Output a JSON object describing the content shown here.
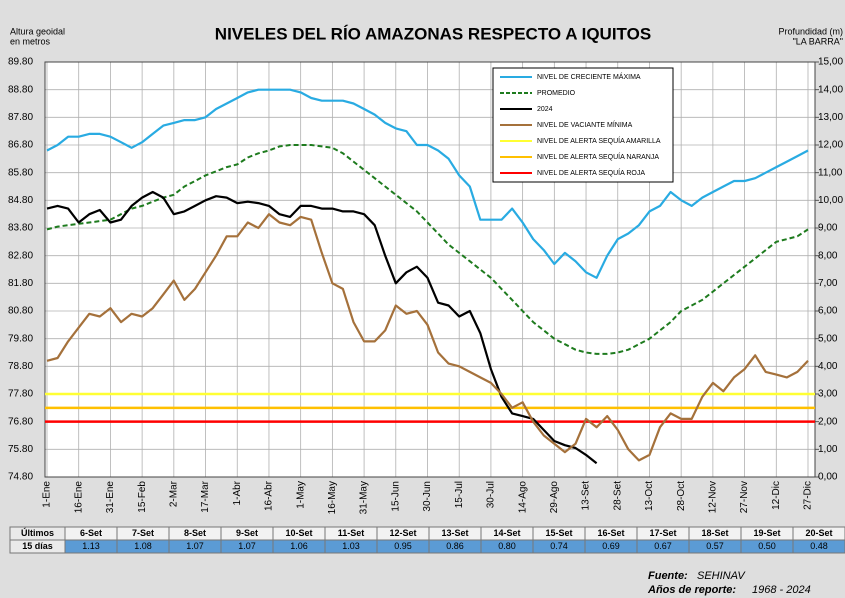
{
  "chart_data": {
    "type": "line",
    "title": "NIVELES DEL RÍO AMAZONAS RESPECTO A IQUITOS",
    "ylabel": [
      "Altura geoidal",
      "en metros"
    ],
    "y2label": [
      "Profundidad (m)",
      "\"LA BARRA\""
    ],
    "categories": [
      "1-Ene",
      null,
      null,
      "16-Ene",
      null,
      null,
      "31-Ene",
      null,
      null,
      "15-Feb",
      null,
      null,
      "2-Mar",
      null,
      null,
      "17-Mar",
      null,
      null,
      "1-Abr",
      null,
      null,
      "16-Abr",
      null,
      null,
      "1-May",
      null,
      null,
      "16-May",
      null,
      null,
      "31-May",
      null,
      null,
      "15-Jun",
      null,
      null,
      "30-Jun",
      null,
      null,
      "15-Jul",
      null,
      null,
      "30-Jul",
      null,
      null,
      "14-Ago",
      null,
      null,
      "29-Ago",
      null,
      null,
      "13-Set",
      null,
      null,
      "28-Set",
      null,
      null,
      "13-Oct",
      null,
      null,
      "28-Oct",
      null,
      null,
      "12-Nov",
      null,
      null,
      "27-Nov",
      null,
      null,
      "12-Dic",
      null,
      null,
      "27-Dic"
    ],
    "series": [
      {
        "name": "NIVEL DE CRECIENTE MÁXIMA",
        "color": "#29abe2",
        "dash": false,
        "values": [
          86.6,
          86.8,
          87.1,
          87.1,
          87.2,
          87.2,
          87.1,
          86.9,
          86.7,
          86.9,
          87.2,
          87.5,
          87.6,
          87.7,
          87.7,
          87.8,
          88.1,
          88.3,
          88.5,
          88.7,
          88.8,
          88.8,
          88.8,
          88.8,
          88.7,
          88.5,
          88.4,
          88.4,
          88.4,
          88.3,
          88.1,
          87.9,
          87.6,
          87.4,
          87.3,
          86.8,
          86.8,
          86.6,
          86.3,
          85.7,
          85.3,
          84.1,
          84.1,
          84.1,
          84.5,
          84.0,
          83.4,
          83.0,
          82.5,
          82.9,
          82.6,
          82.2,
          82.0,
          82.8,
          83.4,
          83.6,
          83.9,
          84.4,
          84.6,
          85.1,
          84.8,
          84.6,
          84.9,
          85.1,
          85.3,
          85.5,
          85.5,
          85.6,
          85.8,
          86.0,
          86.2,
          86.4,
          86.6
        ]
      },
      {
        "name": "PROMEDIO",
        "color": "#1e7b1e",
        "dash": true,
        "values": [
          83.75,
          83.85,
          83.9,
          83.95,
          84.0,
          84.05,
          84.1,
          84.3,
          84.5,
          84.6,
          84.75,
          84.9,
          85.0,
          85.3,
          85.5,
          85.7,
          85.85,
          86.0,
          86.1,
          86.35,
          86.5,
          86.6,
          86.75,
          86.8,
          86.8,
          86.8,
          86.75,
          86.7,
          86.5,
          86.2,
          85.9,
          85.6,
          85.3,
          85.0,
          84.7,
          84.4,
          84.0,
          83.6,
          83.2,
          82.9,
          82.6,
          82.3,
          82.0,
          81.6,
          81.2,
          80.8,
          80.4,
          80.1,
          79.8,
          79.6,
          79.4,
          79.3,
          79.25,
          79.25,
          79.3,
          79.4,
          79.6,
          79.8,
          80.1,
          80.4,
          80.8,
          81.0,
          81.2,
          81.5,
          81.8,
          82.1,
          82.4,
          82.7,
          83.0,
          83.3,
          83.4,
          83.5,
          83.75
        ]
      },
      {
        "name": "2024",
        "color": "#000000",
        "dash": false,
        "values": [
          84.5,
          84.6,
          84.5,
          84.0,
          84.3,
          84.45,
          84.0,
          84.1,
          84.6,
          84.9,
          85.1,
          84.9,
          84.3,
          84.4,
          84.6,
          84.8,
          84.95,
          84.9,
          84.7,
          84.75,
          84.7,
          84.6,
          84.3,
          84.2,
          84.6,
          84.6,
          84.5,
          84.5,
          84.4,
          84.4,
          84.3,
          83.9,
          82.8,
          81.8,
          82.2,
          82.4,
          82.0,
          81.1,
          81.0,
          80.6,
          80.8,
          80.0,
          78.7,
          77.7,
          77.1,
          77.0,
          76.9,
          76.5,
          76.1,
          75.95,
          75.85,
          75.6,
          75.3,
          null,
          null,
          null,
          null,
          null,
          null,
          null,
          null,
          null,
          null,
          null,
          null,
          null,
          null,
          null,
          null,
          null,
          null,
          null,
          null
        ]
      },
      {
        "name": "NIVEL DE VACIANTE MÍNIMA",
        "color": "#a5713b",
        "dash": false,
        "values": [
          79.0,
          79.1,
          79.7,
          80.2,
          80.7,
          80.6,
          80.9,
          80.4,
          80.7,
          80.6,
          80.9,
          81.4,
          81.9,
          81.2,
          81.6,
          82.2,
          82.8,
          83.5,
          83.5,
          84.0,
          83.8,
          84.3,
          84.0,
          83.9,
          84.2,
          84.1,
          82.9,
          81.8,
          81.6,
          80.4,
          79.7,
          79.7,
          80.1,
          81.0,
          80.7,
          80.8,
          80.3,
          79.3,
          78.9,
          78.8,
          78.6,
          78.4,
          78.2,
          77.8,
          77.3,
          77.5,
          76.8,
          76.3,
          76.0,
          75.7,
          76.0,
          76.9,
          76.6,
          77.0,
          76.5,
          75.8,
          75.4,
          75.6,
          76.6,
          77.1,
          76.9,
          76.9,
          77.7,
          78.2,
          77.9,
          78.4,
          78.7,
          79.2,
          78.6,
          78.5,
          78.4,
          78.6,
          79.0
        ]
      }
    ],
    "alert_levels": [
      {
        "name": "NIVEL DE ALERTA SEQUÍA AMARILLA",
        "color": "#ffff33",
        "value": 77.8
      },
      {
        "name": "NIVEL DE ALERTA SEQUÍA NARANJA",
        "color": "#ffc000",
        "value": 77.3
      },
      {
        "name": "NIVEL DE ALERTA SEQUÍA ROJA",
        "color": "#ff0000",
        "value": 76.8
      }
    ],
    "ylim": [
      74.8,
      89.8
    ],
    "yticks": [
      {
        "value": 74.8,
        "label": "74.80"
      },
      {
        "value": 75.8,
        "label": "75.80"
      },
      {
        "value": 76.8,
        "label": "76.80"
      },
      {
        "value": 77.8,
        "label": "77.80"
      },
      {
        "value": 78.8,
        "label": "78.80"
      },
      {
        "value": 79.8,
        "label": "79.80"
      },
      {
        "value": 80.8,
        "label": "80.80"
      },
      {
        "value": 81.8,
        "label": "81.80"
      },
      {
        "value": 82.8,
        "label": "82.80"
      },
      {
        "value": 83.8,
        "label": "83.80"
      },
      {
        "value": 84.8,
        "label": "84.80"
      },
      {
        "value": 85.8,
        "label": "85.80"
      },
      {
        "value": 86.8,
        "label": "86.80"
      },
      {
        "value": 87.8,
        "label": "87.80"
      },
      {
        "value": 88.8,
        "label": "88.80"
      },
      {
        "value": 89.8,
        "label": "89.80"
      }
    ],
    "y2lim": [
      0,
      15
    ],
    "y2ticks": [
      {
        "value": 0,
        "label": "0,00"
      },
      {
        "value": 1,
        "label": "1,00"
      },
      {
        "value": 2,
        "label": "2,00"
      },
      {
        "value": 3,
        "label": "3,00"
      },
      {
        "value": 4,
        "label": "4,00"
      },
      {
        "value": 5,
        "label": "5,00"
      },
      {
        "value": 6,
        "label": "6,00"
      },
      {
        "value": 7,
        "label": "7,00"
      },
      {
        "value": 8,
        "label": "8,00"
      },
      {
        "value": 9,
        "label": "9,00"
      },
      {
        "value": 10,
        "label": "10,00"
      },
      {
        "value": 11,
        "label": "11,00"
      },
      {
        "value": 12,
        "label": "12,00"
      },
      {
        "value": 13,
        "label": "13,00"
      },
      {
        "value": 14,
        "label": "14,00"
      },
      {
        "value": 15,
        "label": "15,00"
      }
    ],
    "grid": true,
    "legend": "upper right"
  },
  "table": {
    "head": [
      "Últimos",
      "15 días"
    ],
    "columns": [
      "6-Set",
      "7-Set",
      "8-Set",
      "9-Set",
      "10-Set",
      "11-Set",
      "12-Set",
      "13-Set",
      "14-Set",
      "15-Set",
      "16-Set",
      "17-Set",
      "18-Set",
      "19-Set",
      "20-Set"
    ],
    "values": [
      "1.13",
      "1.08",
      "1.07",
      "1.07",
      "1.06",
      "1.03",
      "0.95",
      "0.86",
      "0.80",
      "0.74",
      "0.69",
      "0.67",
      "0.57",
      "0.50",
      "0.48"
    ]
  },
  "footer": {
    "source_label": "Fuente:",
    "source": "SEHINAV",
    "years_label": "Años de reporte:",
    "years": "1968 - 2024"
  }
}
